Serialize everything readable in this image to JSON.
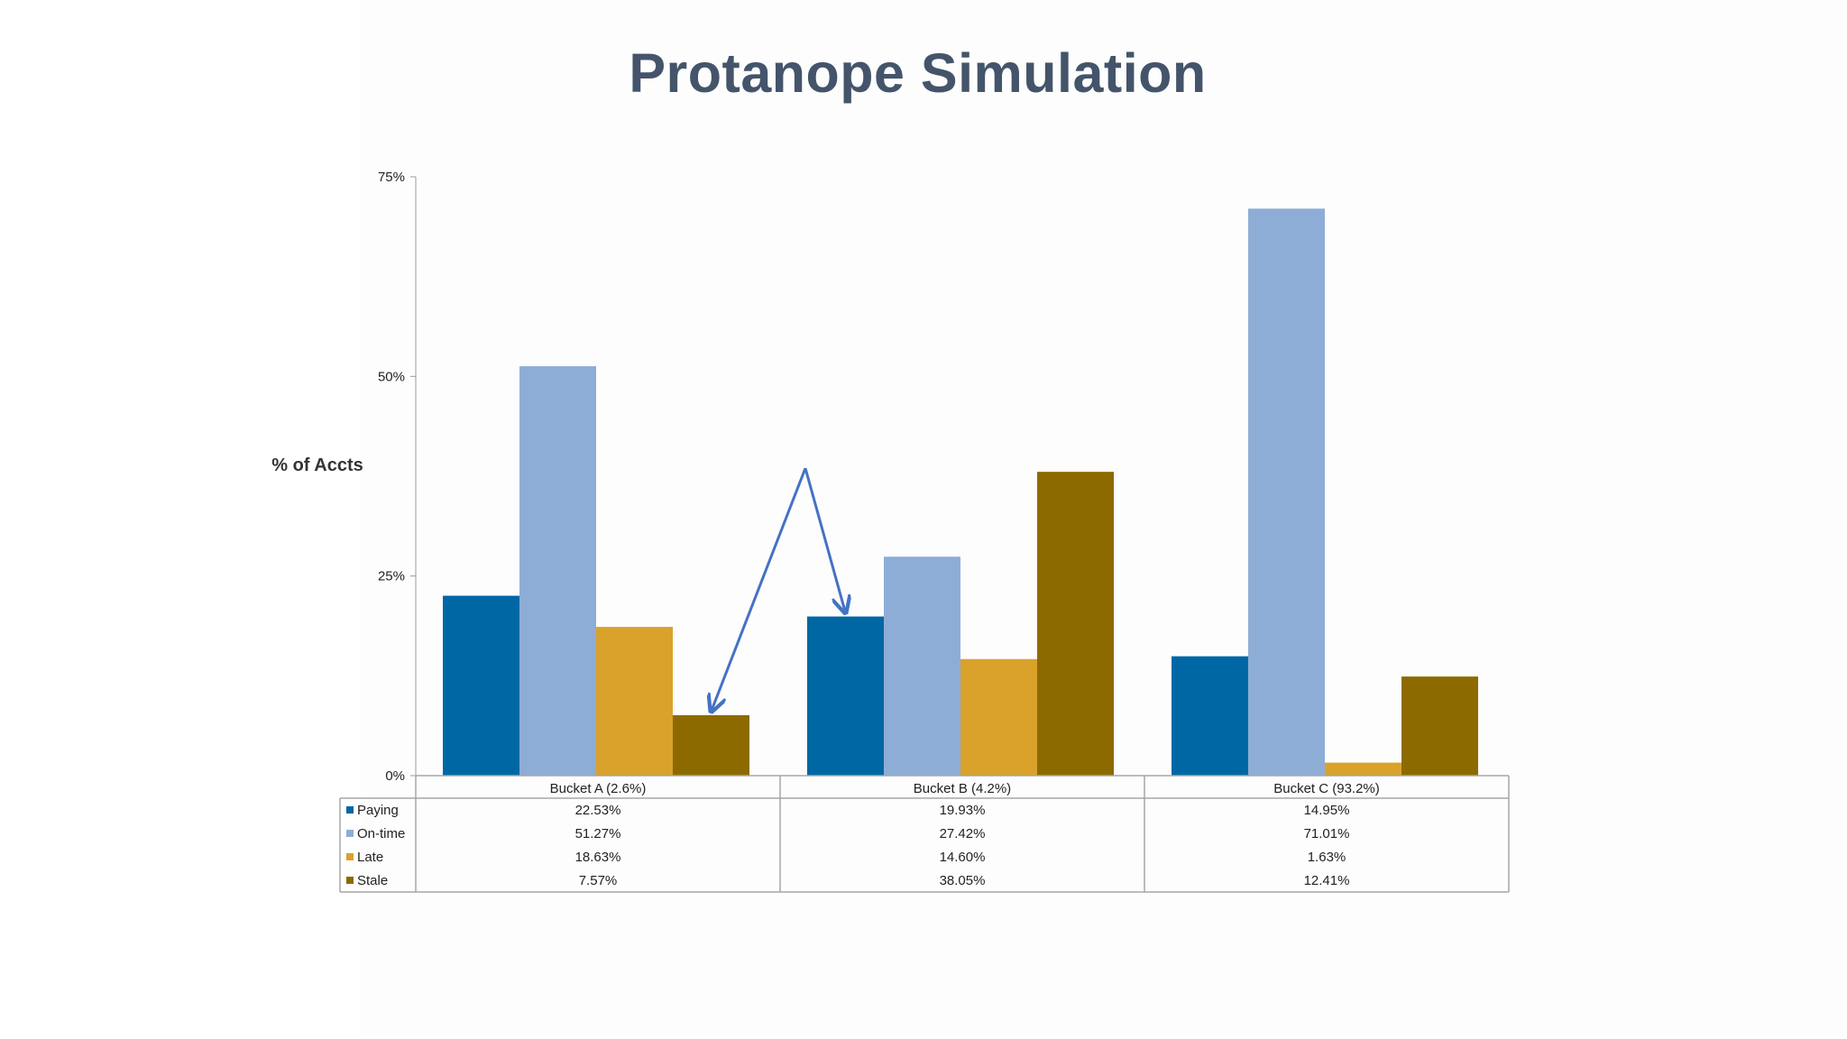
{
  "slide": {
    "title": "Protanope Simulation"
  },
  "chart_data": {
    "type": "bar",
    "ylabel": "% of Accts",
    "ylim": [
      0,
      75
    ],
    "yticks": [
      "0%",
      "25%",
      "50%",
      "75%"
    ],
    "ytick_values": [
      0,
      25,
      50,
      75
    ],
    "categories": [
      "Bucket A (2.6%)",
      "Bucket B (4.2%)",
      "Bucket C (93.2%)"
    ],
    "series": [
      {
        "name": "Paying",
        "values": [
          22.53,
          19.93,
          14.95
        ],
        "labels": [
          "22.53%",
          "19.93%",
          "14.95%"
        ],
        "color": "#0067a5"
      },
      {
        "name": "On-time",
        "values": [
          51.27,
          27.42,
          71.01
        ],
        "labels": [
          "51.27%",
          "27.42%",
          "71.01%"
        ],
        "color": "#8eadd6"
      },
      {
        "name": "Late",
        "values": [
          18.63,
          14.6,
          1.63
        ],
        "labels": [
          "18.63%",
          "14.60%",
          "1.63%"
        ],
        "color": "#d9a22b"
      },
      {
        "name": "Stale",
        "values": [
          7.57,
          38.05,
          12.41
        ],
        "labels": [
          "7.57%",
          "38.05%",
          "12.41%"
        ],
        "color": "#8d6a00"
      }
    ],
    "data_table": true,
    "legend": "data-table-left",
    "grid": false,
    "annotation": {
      "type": "arrows",
      "color": "#4472c4",
      "from": {
        "category": 1,
        "value": 38.5
      },
      "targets": [
        {
          "category": 0,
          "series": 3
        },
        {
          "category": 1,
          "series": 0
        }
      ]
    }
  }
}
